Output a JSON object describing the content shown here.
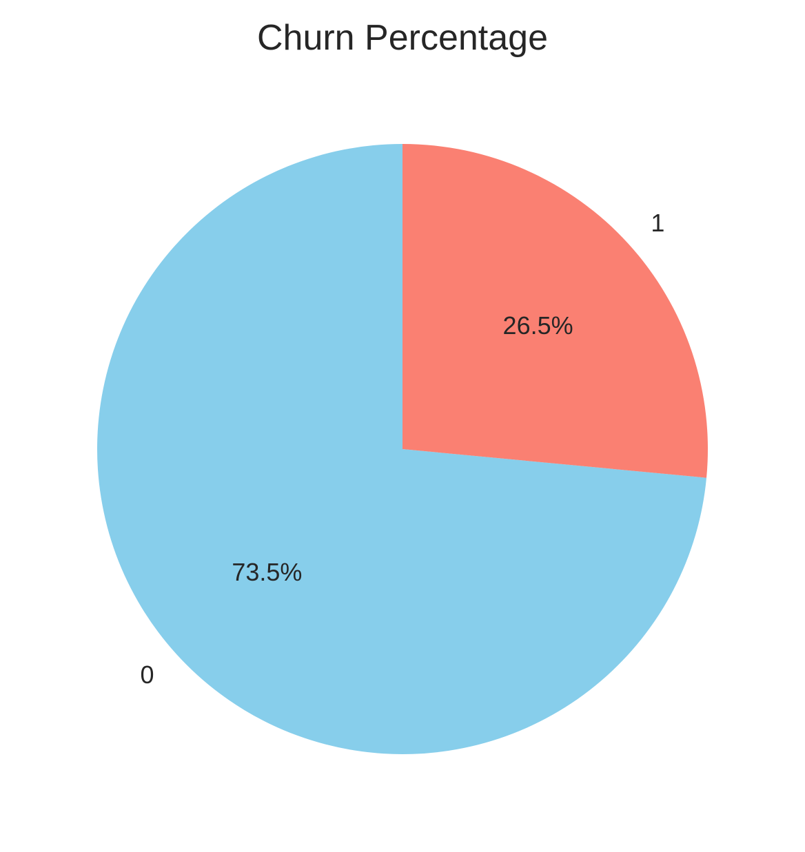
{
  "chart_data": {
    "type": "pie",
    "title": "Churn Percentage",
    "categories": [
      "0",
      "1"
    ],
    "values": [
      73.5,
      26.5
    ],
    "percent_labels": [
      "73.5%",
      "26.5%"
    ],
    "colors": [
      "#87CEEB",
      "#FA8072"
    ],
    "start_angle_deg": 90,
    "direction": "counterclockwise",
    "legend": "none"
  }
}
